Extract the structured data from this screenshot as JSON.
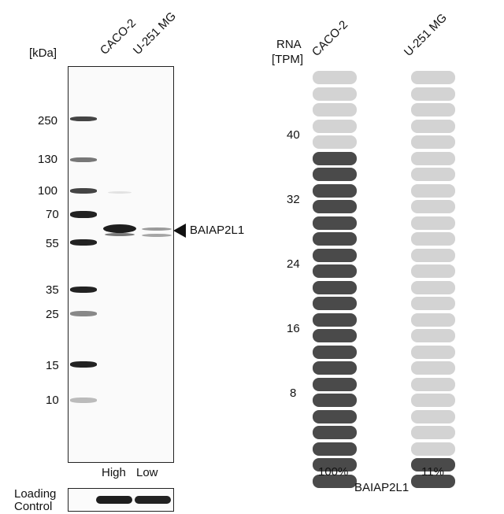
{
  "western_blot": {
    "kda_label": "[kDa]",
    "lanes": [
      "CACO-2",
      "U-251 MG"
    ],
    "markers": [
      "250",
      "130",
      "100",
      "70",
      "55",
      "35",
      "25",
      "15",
      "10"
    ],
    "target_label": "BAIAP2L1",
    "expression_labels": [
      "High",
      "Low"
    ],
    "loading_control_label": "Loading Control"
  },
  "rna": {
    "header_line1": "RNA",
    "header_line2": "[TPM]",
    "columns": [
      {
        "name": "CACO-2",
        "filled": 21,
        "total": 26,
        "percent": "100%"
      },
      {
        "name": "U-251 MG",
        "filled": 2,
        "total": 26,
        "percent": "11%"
      }
    ],
    "y_ticks": [
      "40",
      "32",
      "24",
      "16",
      "8"
    ],
    "gene_label": "BAIAP2L1",
    "colors": {
      "filled": "#4a4a4a",
      "empty": "#d3d3d3"
    }
  }
}
